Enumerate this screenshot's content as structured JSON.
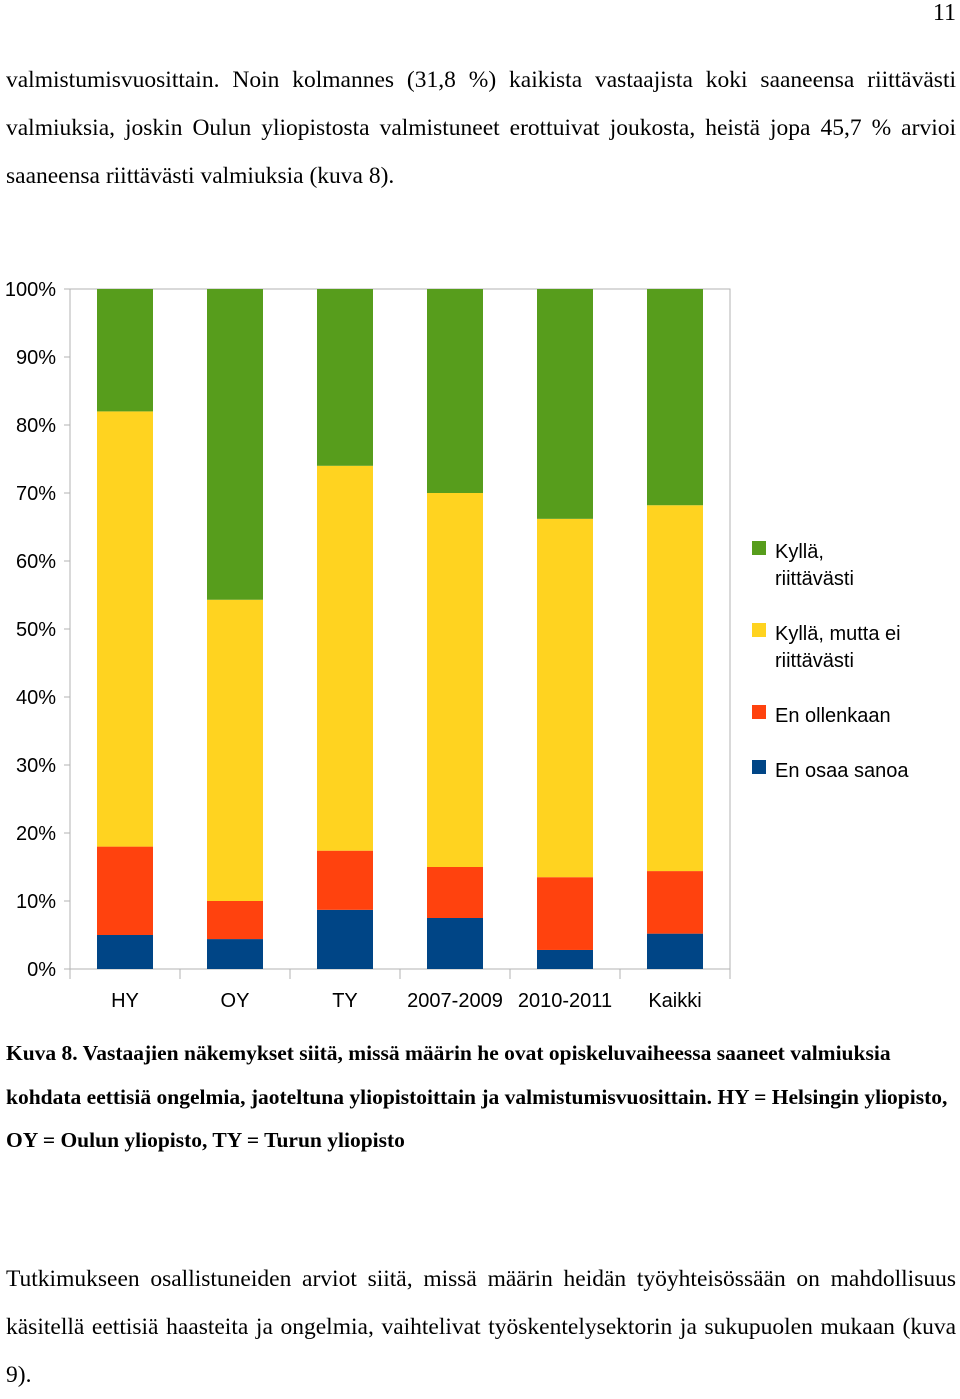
{
  "page_number": "11",
  "intro_paragraph": "valmistumisvuosittain. Noin kolmannes (31,8 %) kaikista vastaajista koki saaneensa riittävästi valmiuksia, joskin Oulun yliopistosta valmistuneet erottuivat joukosta, heistä jopa 45,7 % arvioi saaneensa riittävästi valmiuksia (kuva 8).",
  "caption": "Kuva 8. Vastaajien näkemykset siitä, missä määrin he ovat opiskeluvaiheessa saaneet valmiuksia kohdata eettisiä ongelmia, jaoteltuna yliopistoittain ja valmistumisvuosittain. HY = Helsingin yliopisto, OY = Oulun yliopisto, TY = Turun yliopisto",
  "outro_paragraph": "Tutkimukseen osallistuneiden arviot siitä, missä määrin heidän työyhteisössään on mahdollisuus käsitellä eettisiä haasteita ja ongelmia, vaihtelivat työskentelysektorin ja sukupuolen mukaan (kuva 9).",
  "chart_data": {
    "type": "bar",
    "stacked": true,
    "categories": [
      "HY",
      "OY",
      "TY",
      "2007-2009",
      "2010-2011",
      "Kaikki"
    ],
    "y_ticks": [
      "0%",
      "10%",
      "20%",
      "30%",
      "40%",
      "50%",
      "60%",
      "70%",
      "80%",
      "90%",
      "100%"
    ],
    "ylim": [
      0,
      100
    ],
    "legend_position": "right",
    "series": [
      {
        "name": "En osaa sanoa",
        "color": "#004586",
        "values": [
          5.0,
          4.4,
          8.7,
          7.5,
          2.8,
          5.2
        ]
      },
      {
        "name": "En ollenkaan",
        "color": "#ff420e",
        "values": [
          13.0,
          5.6,
          8.7,
          7.5,
          10.7,
          9.2
        ]
      },
      {
        "name": "Kyllä, mutta ei riittävästi",
        "color": "#ffd320",
        "values": [
          64.0,
          44.3,
          56.6,
          55.0,
          52.7,
          53.8
        ]
      },
      {
        "name": "Kyllä, riittävästi",
        "color": "#579d1c",
        "values": [
          18.0,
          45.7,
          26.0,
          30.0,
          33.8,
          31.8
        ]
      }
    ],
    "legend_order": [
      {
        "label_lines": [
          "Kyllä,",
          "riittävästi"
        ],
        "color": "#579d1c"
      },
      {
        "label_lines": [
          "Kyllä, mutta ei",
          "riittävästi"
        ],
        "color": "#ffd320"
      },
      {
        "label_lines": [
          "En ollenkaan"
        ],
        "color": "#ff420e"
      },
      {
        "label_lines": [
          "En osaa sanoa"
        ],
        "color": "#004586"
      }
    ]
  }
}
